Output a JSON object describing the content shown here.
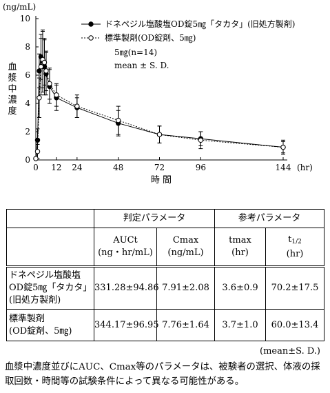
{
  "chart_data": {
    "type": "line",
    "yunit": "(ng/mL)",
    "ylabel": "血漿中濃度",
    "xlabel": "時 間",
    "xunit": "(hr)",
    "ylim": [
      0,
      10
    ],
    "yticks": [
      0,
      2,
      4,
      6,
      8,
      10
    ],
    "xticks": [
      0,
      12,
      24,
      48,
      72,
      96,
      144
    ],
    "series": [
      {
        "name": "ドネペジル塩酸塩OD錠5㎎「タカタ」(旧処方製剤)",
        "marker": "filled",
        "line": "solid",
        "x": [
          0,
          1,
          2,
          3,
          4,
          5,
          6,
          8,
          12,
          24,
          48,
          72,
          96,
          144
        ],
        "y": [
          0.1,
          1.4,
          6.3,
          7.3,
          7.0,
          6.6,
          6.1,
          5.2,
          4.4,
          3.7,
          2.6,
          1.8,
          1.5,
          0.9
        ],
        "sd": [
          0.0,
          0.8,
          1.2,
          1.6,
          2.2,
          2.0,
          1.5,
          1.2,
          0.9,
          0.7,
          0.9,
          0.6,
          0.5,
          0.4
        ]
      },
      {
        "name": "標準製剤(OD錠剤、5㎎)",
        "marker": "open",
        "line": "dotted",
        "x": [
          0,
          1,
          2,
          3,
          4,
          5,
          6,
          8,
          12,
          24,
          48,
          72,
          96,
          144
        ],
        "y": [
          0.1,
          0.6,
          4.4,
          6.6,
          7.1,
          6.9,
          6.3,
          5.4,
          4.6,
          3.8,
          2.8,
          1.8,
          1.4,
          0.9
        ],
        "sd": [
          0.0,
          0.5,
          1.4,
          2.0,
          2.0,
          1.6,
          1.4,
          1.1,
          0.8,
          0.8,
          1.0,
          0.6,
          0.6,
          0.5
        ]
      }
    ],
    "legend_note_1": "5㎎(n=14)",
    "legend_note_2": "mean ± S. D."
  },
  "table": {
    "group1": "判定パラメータ",
    "group2": "参考パラメータ",
    "col1": [
      "AUCt",
      "(ng・hr/mL)"
    ],
    "col2": [
      "Cmax",
      "(ng/mL)"
    ],
    "col3": [
      "tmax",
      "(hr)"
    ],
    "col4_main": "t",
    "col4_sub": "1/2",
    "col4_unit": "(hr)",
    "rows": [
      {
        "label": [
          "ドネペジル塩酸塩",
          "OD錠5㎎「タカタ」",
          "(旧処方製剤)"
        ],
        "auct": "331.28±94.86",
        "cmax": "7.91±2.08",
        "tmax": "3.6±0.9",
        "thalf": "70.2±17.5"
      },
      {
        "label": [
          "標準製剤",
          "(OD錠剤、5㎎)"
        ],
        "auct": "344.17±96.95",
        "cmax": "7.76±1.64",
        "tmax": "3.7±1.0",
        "thalf": "60.0±13.4"
      }
    ]
  },
  "note": "(mean±S. D.)",
  "footnote": "血漿中濃度並びにAUC、Cmax等のパラメータは、被験者の選択、体液の採取回数・時間等の試験条件によって異なる可能性がある。"
}
